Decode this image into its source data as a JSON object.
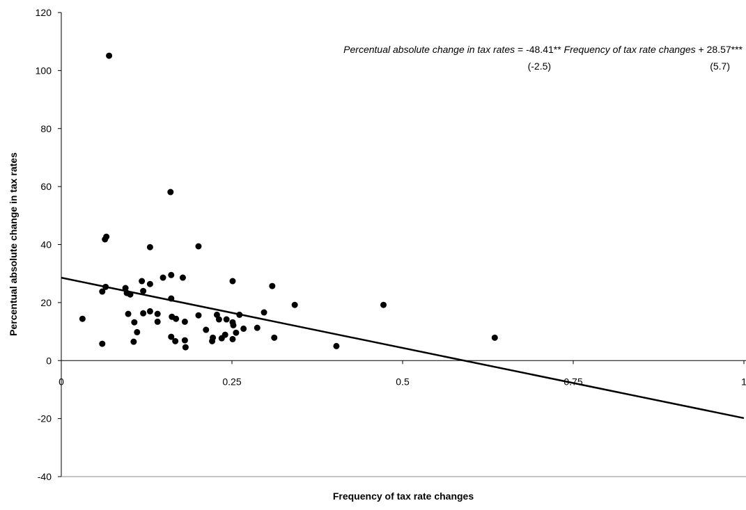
{
  "chart_data": {
    "type": "scatter",
    "x_label": "Frequency of tax rate changes",
    "y_label": "Percentual absolute change in tax rates",
    "xlim": [
      0,
      1
    ],
    "ylim": [
      -40,
      120
    ],
    "xticks": [
      0,
      0.25,
      0.5,
      0.75,
      1
    ],
    "yticks": [
      -40,
      -20,
      0,
      20,
      40,
      60,
      80,
      100,
      120
    ],
    "color": "#000000",
    "x": [
      0.07,
      0.031,
      0.066,
      0.064,
      0.065,
      0.06,
      0.06,
      0.094,
      0.096,
      0.101,
      0.098,
      0.107,
      0.111,
      0.106,
      0.118,
      0.12,
      0.12,
      0.13,
      0.13,
      0.13,
      0.141,
      0.141,
      0.149,
      0.16,
      0.161,
      0.161,
      0.162,
      0.168,
      0.161,
      0.167,
      0.178,
      0.181,
      0.181,
      0.182,
      0.201,
      0.201,
      0.212,
      0.221,
      0.222,
      0.228,
      0.231,
      0.235,
      0.24,
      0.242,
      0.251,
      0.251,
      0.252,
      0.251,
      0.256,
      0.261,
      0.267,
      0.287,
      0.297,
      0.309,
      0.312,
      0.342,
      0.403,
      0.472,
      0.635
    ],
    "values": [
      105.1,
      14.4,
      42.7,
      41.8,
      25.4,
      23.8,
      5.8,
      25.0,
      23.3,
      22.8,
      16.1,
      13.2,
      9.8,
      6.5,
      27.4,
      24.0,
      16.3,
      26.4,
      39.1,
      17.0,
      16.1,
      13.4,
      28.6,
      58.1,
      29.5,
      21.4,
      15.1,
      14.4,
      8.2,
      6.7,
      28.6,
      13.4,
      7.0,
      4.6,
      39.4,
      15.6,
      10.6,
      6.7,
      7.9,
      15.8,
      14.2,
      7.7,
      8.9,
      14.2,
      27.4,
      13.2,
      12.2,
      7.4,
      9.6,
      15.8,
      11.0,
      11.3,
      16.6,
      25.7,
      7.9,
      19.2,
      5.0,
      19.2,
      7.9
    ],
    "trend": {
      "x": [
        0,
        1
      ],
      "values": [
        28.57,
        -19.84
      ]
    },
    "annotation": [
      {
        "text": "Percentual absolute change in tax rates",
        "italic": true
      },
      {
        "text": " = -48.41** ",
        "italic": false
      },
      {
        "text": "Frequency of tax rate changes",
        "italic": true
      },
      {
        "text": " + 28.57***",
        "italic": false
      }
    ],
    "annotation_stats": [
      "(-2.5)",
      "(5.7)"
    ]
  }
}
